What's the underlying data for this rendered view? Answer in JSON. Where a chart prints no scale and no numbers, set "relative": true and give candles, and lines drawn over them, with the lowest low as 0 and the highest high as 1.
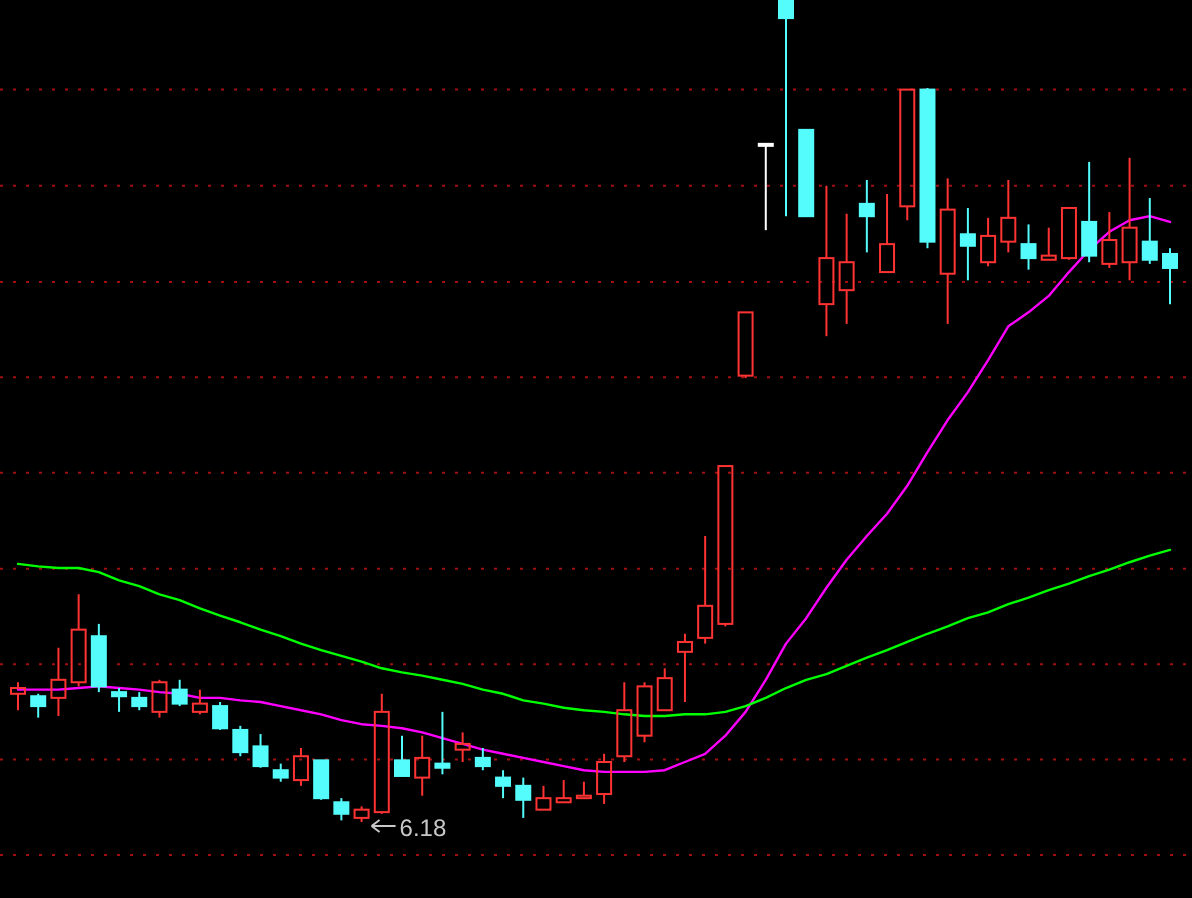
{
  "chart_data": {
    "type": "candlestick",
    "relative": true,
    "ref_lines": [
      {
        "axis": "y",
        "value": 0.891,
        "color": "#a01010",
        "line_style": "dotted"
      },
      {
        "axis": "y",
        "value": 0.774,
        "color": "#a01010",
        "line_style": "dotted"
      },
      {
        "axis": "y",
        "value": 0.657,
        "color": "#a01010",
        "line_style": "dotted"
      },
      {
        "axis": "y",
        "value": 0.541,
        "color": "#a01010",
        "line_style": "dotted"
      },
      {
        "axis": "y",
        "value": 0.425,
        "color": "#a01010",
        "line_style": "dotted"
      },
      {
        "axis": "y",
        "value": 0.308,
        "color": "#a01010",
        "line_style": "dotted"
      },
      {
        "axis": "y",
        "value": 0.192,
        "color": "#a01010",
        "line_style": "dotted"
      },
      {
        "axis": "y",
        "value": 0.076,
        "color": "#a01010",
        "line_style": "dotted"
      },
      {
        "axis": "y",
        "value": -0.04,
        "color": "#a01010",
        "line_style": "dotted"
      }
    ],
    "categories": [
      null,
      null,
      null,
      null,
      null,
      null,
      null,
      null,
      null,
      null,
      null,
      null,
      null,
      null,
      null,
      null,
      null,
      null,
      null,
      null,
      null,
      null,
      null,
      null,
      null,
      null,
      null,
      null,
      null,
      null,
      null,
      null,
      null,
      null,
      null,
      null,
      null,
      null,
      null,
      null,
      null,
      null,
      null,
      null,
      null,
      null,
      null,
      null,
      null,
      null,
      null,
      null,
      null,
      null,
      null,
      null,
      null,
      null
    ],
    "ohlc": [
      [
        0.156,
        0.17,
        0.136,
        0.163
      ],
      [
        0.153,
        0.156,
        0.127,
        0.141
      ],
      [
        0.151,
        0.212,
        0.129,
        0.173
      ],
      [
        0.17,
        0.277,
        0.165,
        0.234
      ],
      [
        0.226,
        0.241,
        0.158,
        0.165
      ],
      [
        0.158,
        0.163,
        0.134,
        0.153
      ],
      [
        0.151,
        0.158,
        0.136,
        0.141
      ],
      [
        0.134,
        0.173,
        0.127,
        0.17
      ],
      [
        0.161,
        0.173,
        0.141,
        0.144
      ],
      [
        0.134,
        0.161,
        0.131,
        0.144
      ],
      [
        0.141,
        0.146,
        0.112,
        0.114
      ],
      [
        0.112,
        0.117,
        0.08,
        0.085
      ],
      [
        0.092,
        0.107,
        0.066,
        0.068
      ],
      [
        0.063,
        0.071,
        0.049,
        0.054
      ],
      [
        0.051,
        0.09,
        0.044,
        0.08
      ],
      [
        0.075,
        0.075,
        0.027,
        0.029
      ],
      [
        0.024,
        0.029,
        0.002,
        0.01
      ],
      [
        0.005,
        0.019,
        0,
        0.015
      ],
      [
        0.012,
        0.156,
        0.01,
        0.134
      ],
      [
        0.075,
        0.105,
        0.056,
        0.056
      ],
      [
        0.054,
        0.105,
        0.032,
        0.078
      ],
      [
        0.071,
        0.134,
        0.058,
        0.066
      ],
      [
        0.088,
        0.109,
        0.073,
        0.095
      ],
      [
        0.078,
        0.09,
        0.063,
        0.068
      ],
      [
        0.054,
        0.063,
        0.029,
        0.044
      ],
      [
        0.044,
        0.054,
        0.005,
        0.027
      ],
      [
        0.015,
        0.044,
        0.015,
        0.029
      ],
      [
        0.024,
        0.051,
        0.024,
        0.029
      ],
      [
        0.029,
        0.049,
        0.029,
        0.032
      ],
      [
        0.034,
        0.083,
        0.022,
        0.073
      ],
      [
        0.08,
        0.17,
        0.073,
        0.136
      ],
      [
        0.105,
        0.17,
        0.097,
        0.165
      ],
      [
        0.136,
        0.187,
        0.136,
        0.175
      ],
      [
        0.207,
        0.229,
        0.146,
        0.219
      ],
      [
        0.224,
        0.348,
        0.217,
        0.263
      ],
      [
        0.241,
        0.433,
        0.238,
        0.433
      ],
      [
        0.543,
        0.62,
        0.54,
        0.62
      ],
      [
        0.825,
        0.825,
        0.72,
        0.825
      ],
      [
        1,
        1,
        0.737,
        0.978
      ],
      [
        0.842,
        0.842,
        0.737,
        0.737
      ],
      [
        0.63,
        0.774,
        0.591,
        0.686
      ],
      [
        0.647,
        0.74,
        0.606,
        0.681
      ],
      [
        0.752,
        0.781,
        0.693,
        0.737
      ],
      [
        0.669,
        0.764,
        0.669,
        0.703
      ],
      [
        0.749,
        0.891,
        0.732,
        0.891
      ],
      [
        0.891,
        0.893,
        0.698,
        0.706
      ],
      [
        0.667,
        0.783,
        0.606,
        0.745
      ],
      [
        0.715,
        0.747,
        0.659,
        0.701
      ],
      [
        0.681,
        0.735,
        0.676,
        0.713
      ],
      [
        0.706,
        0.781,
        0.693,
        0.735
      ],
      [
        0.703,
        0.727,
        0.672,
        0.686
      ],
      [
        0.684,
        0.723,
        0.684,
        0.689
      ],
      [
        0.686,
        0.747,
        0.684,
        0.747
      ],
      [
        0.73,
        0.803,
        0.681,
        0.689
      ],
      [
        0.679,
        0.742,
        0.674,
        0.708
      ],
      [
        0.681,
        0.808,
        0.659,
        0.723
      ],
      [
        0.706,
        0.759,
        0.679,
        0.684
      ],
      [
        0.691,
        0.698,
        0.63,
        0.674
      ]
    ],
    "colors": [
      "#ff3333",
      "#54fcfc",
      "#ff3333",
      "#ff3333",
      "#54fcfc",
      "#54fcfc",
      "#54fcfc",
      "#ff3333",
      "#54fcfc",
      "#ff3333",
      "#54fcfc",
      "#54fcfc",
      "#54fcfc",
      "#54fcfc",
      "#ff3333",
      "#54fcfc",
      "#54fcfc",
      "#ff3333",
      "#ff3333",
      "#54fcfc",
      "#ff3333",
      "#54fcfc",
      "#ff3333",
      "#54fcfc",
      "#54fcfc",
      "#54fcfc",
      "#ff3333",
      "#ff3333",
      "#ff3333",
      "#ff3333",
      "#ff3333",
      "#ff3333",
      "#ff3333",
      "#ff3333",
      "#ff3333",
      "#ff3333",
      "#ff3333",
      "#ffffff",
      "#54fcfc",
      "#54fcfc",
      "#ff3333",
      "#ff3333",
      "#54fcfc",
      "#ff3333",
      "#ff3333",
      "#54fcfc",
      "#ff3333",
      "#54fcfc",
      "#ff3333",
      "#ff3333",
      "#54fcfc",
      "#ff3333",
      "#ff3333",
      "#54fcfc",
      "#ff3333",
      "#ff3333",
      "#54fcfc",
      "#54fcfc"
    ],
    "series": [
      {
        "type": "line",
        "color": "#ff00ff",
        "values": [
          0.161,
          0.161,
          0.161,
          0.163,
          0.165,
          0.163,
          0.161,
          0.158,
          0.156,
          0.151,
          0.151,
          0.148,
          0.146,
          0.141,
          0.136,
          0.131,
          0.124,
          0.119,
          0.117,
          0.114,
          0.109,
          0.102,
          0.095,
          0.088,
          0.083,
          0.078,
          0.073,
          0.068,
          0.063,
          0.061,
          0.061,
          0.061,
          0.063,
          0.073,
          0.083,
          0.105,
          0.134,
          0.173,
          0.217,
          0.248,
          0.285,
          0.319,
          0.348,
          0.375,
          0.409,
          0.45,
          0.489,
          0.523,
          0.562,
          0.603,
          0.62,
          0.64,
          0.669,
          0.696,
          0.718,
          0.732,
          0.737,
          0.73
        ]
      },
      {
        "type": "line",
        "color": "#00ff00",
        "values": [
          0.314,
          0.311,
          0.309,
          0.309,
          0.304,
          0.294,
          0.287,
          0.277,
          0.27,
          0.26,
          0.251,
          0.243,
          0.234,
          0.226,
          0.217,
          0.209,
          0.202,
          0.195,
          0.187,
          0.182,
          0.178,
          0.173,
          0.168,
          0.161,
          0.156,
          0.148,
          0.144,
          0.139,
          0.136,
          0.134,
          0.131,
          0.129,
          0.129,
          0.131,
          0.131,
          0.134,
          0.141,
          0.151,
          0.163,
          0.173,
          0.18,
          0.19,
          0.2,
          0.209,
          0.219,
          0.229,
          0.238,
          0.248,
          0.255,
          0.265,
          0.273,
          0.282,
          0.29,
          0.299,
          0.307,
          0.316,
          0.324,
          0.331
        ]
      }
    ],
    "annotations": [
      "6.18"
    ]
  }
}
